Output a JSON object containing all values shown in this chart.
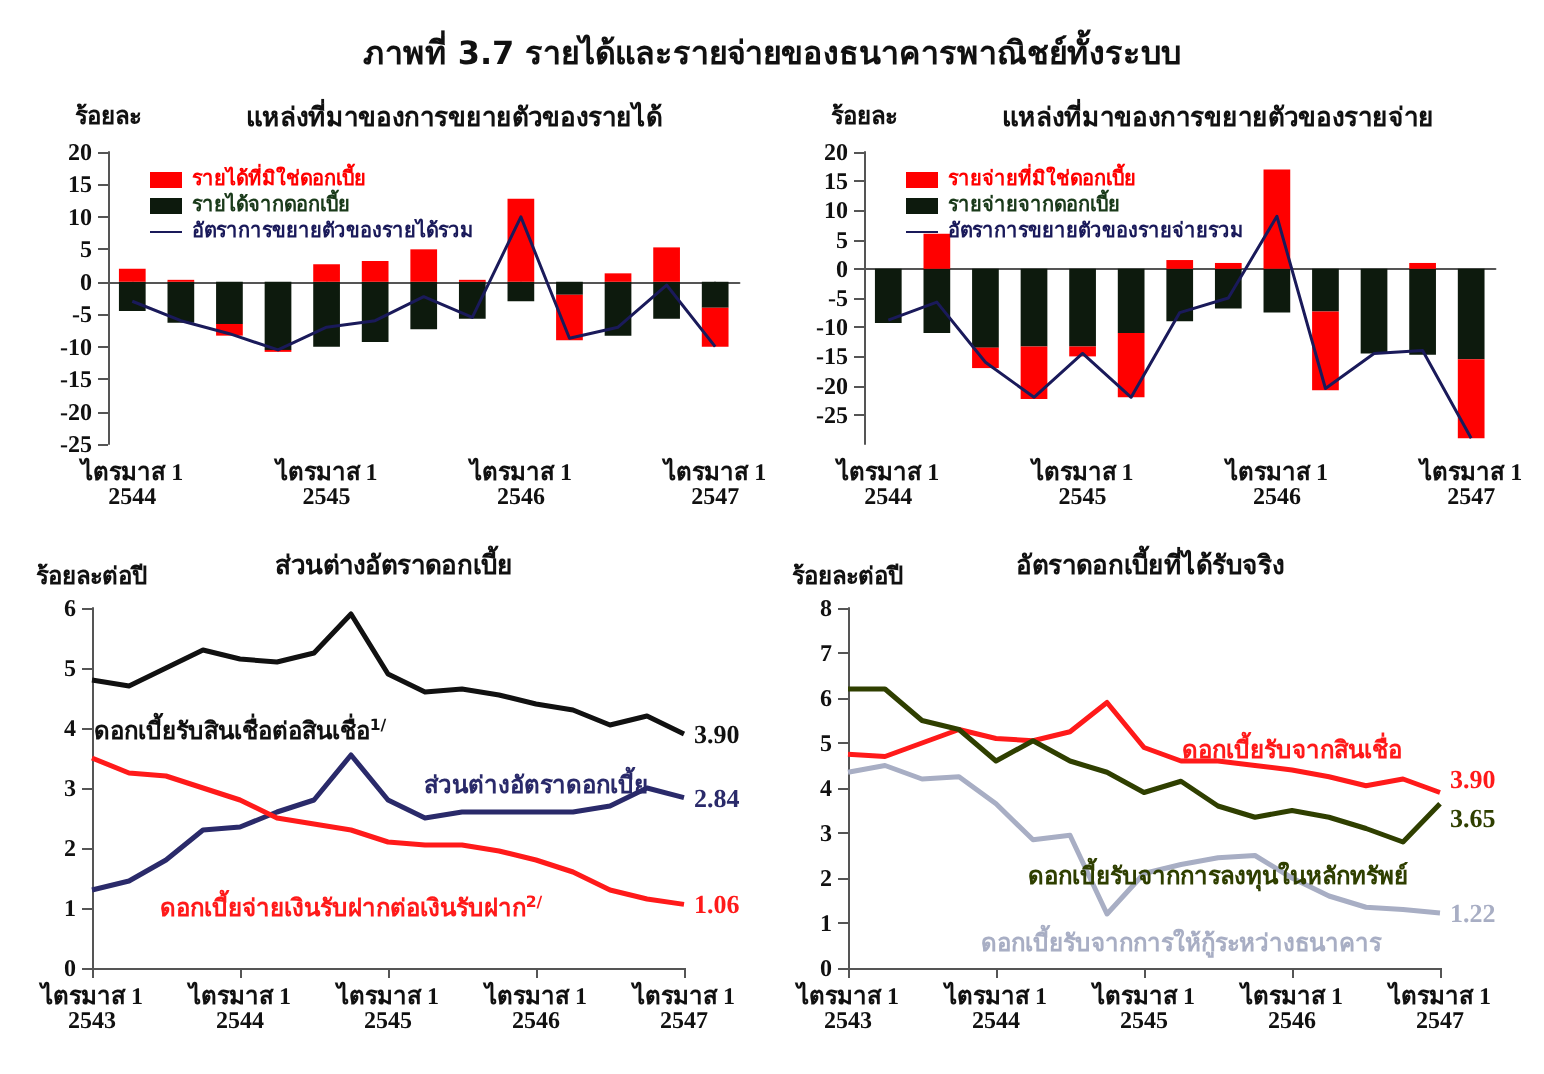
{
  "chart_data": [
    {
      "type": "bar",
      "title": "ภาพที่ 3.7 รายได้และรายจ่ายของธนาคารพาณิชย์ทั้งระบบ",
      "subtitle": "แหล่งที่มาของการขยายตัวของรายได้",
      "ylabel": "ร้อยละ",
      "marker": "none",
      "stacked": true,
      "legend": "top left",
      "ylim": [
        -25,
        20
      ],
      "yticks": [
        -25,
        -20,
        -15,
        -10,
        -5,
        0,
        5,
        10,
        15,
        20
      ],
      "categories": [
        "ไตรมาส 1\n2544",
        null,
        null,
        null,
        "ไตรมาส 1\n2545",
        null,
        null,
        null,
        "ไตรมาส 1\n2546",
        null,
        null,
        null,
        "ไตรมาส 1\n2547"
      ],
      "series": [
        {
          "name": "รายได้จากดอกเบี้ย",
          "color": "#0d1a0d",
          "values": [
            -4.5,
            -6.3,
            -6.5,
            -10.5,
            -10,
            -9.3,
            -7.3,
            -5.7,
            -3,
            -2,
            -8.3,
            -5.7,
            -4
          ]
        },
        {
          "name": "รายได้ที่มิใช่ดอกเบี้ย",
          "color": "#ff0000",
          "values": [
            2,
            0.3,
            -1.8,
            -0.3,
            2.7,
            3.2,
            5,
            0.3,
            12.8,
            -7,
            1.3,
            5.3,
            -6
          ]
        },
        {
          "name": "อัตราการขยายตัวของรายได้รวม",
          "type": "line",
          "color": "#1a1a5a",
          "values": [
            -3,
            -6,
            -8,
            -10.5,
            -7,
            -6,
            -2.3,
            -5.5,
            10,
            -8.7,
            -7,
            -0.5,
            -10
          ]
        }
      ]
    },
    {
      "type": "bar",
      "title": "แหล่งที่มาของการขยายตัวของรายจ่าย",
      "ylabel": "ร้อยละ",
      "marker": "none",
      "stacked": true,
      "legend": "top left",
      "ylim": [
        -30,
        20
      ],
      "yticks": [
        -25,
        -20,
        -15,
        -10,
        -5,
        0,
        5,
        10,
        15,
        20
      ],
      "categories": [
        "ไตรมาส 1\n2544",
        null,
        null,
        null,
        "ไตรมาส 1\n2545",
        null,
        null,
        null,
        "ไตรมาส 1\n2546",
        null,
        null,
        null,
        "ไตรมาส 1\n2547"
      ],
      "series": [
        {
          "name": "รายจ่ายจากดอกเบี้ย",
          "color": "#0d1a0d",
          "values": [
            -9.3,
            -11,
            -13.5,
            -13.3,
            -13.3,
            -11,
            -9,
            -6.8,
            -7.5,
            -7.3,
            -14.5,
            -14.7,
            -15.5
          ]
        },
        {
          "name": "รายจ่ายที่มิใช่ดอกเบี้ย",
          "color": "#ff0000",
          "values": [
            0,
            6,
            -3.5,
            -9,
            -1.7,
            -11,
            1.5,
            1,
            17,
            -13.5,
            0,
            1,
            -13.5
          ]
        },
        {
          "name": "อัตราการขยายตัวของรายจ่ายรวม",
          "type": "line",
          "color": "#1a1a5a",
          "values": [
            -8.8,
            -5.7,
            -16,
            -22,
            -14.5,
            -22,
            -7.5,
            -5,
            9,
            -20.5,
            -14.5,
            -14,
            -29
          ]
        }
      ]
    },
    {
      "type": "line",
      "title": "ส่วนต่างอัตราดอกเบี้ย",
      "ylabel": "ร้อยละต่อปี",
      "marker": "none",
      "ylim": [
        0,
        6
      ],
      "yticks": [
        0,
        1,
        2,
        3,
        4,
        5,
        6
      ],
      "categories": [
        "ไตรมาส 1\n2543",
        null,
        null,
        null,
        "ไตรมาส 1\n2544",
        null,
        null,
        null,
        "ไตรมาส 1\n2545",
        null,
        null,
        null,
        "ไตรมาส 1\n2546",
        null,
        null,
        null,
        "ไตรมาส 1\n2547"
      ],
      "series": [
        {
          "name": "ดอกเบี้ยรับสินเชื่อต่อสินเชื่อ$^{1/}$",
          "color": "#111111",
          "values": [
            4.8,
            4.7,
            5.0,
            5.3,
            5.15,
            5.1,
            5.25,
            5.9,
            4.9,
            4.6,
            4.65,
            4.55,
            4.4,
            4.3,
            4.05,
            4.2,
            3.9
          ],
          "value_labels": [
            null,
            null,
            null,
            null,
            null,
            null,
            null,
            null,
            null,
            null,
            null,
            null,
            null,
            null,
            null,
            null,
            "3.90"
          ]
        },
        {
          "name": "ส่วนต่างอัตราดอกเบี้ย",
          "color": "#2a2a6a",
          "values": [
            1.3,
            1.45,
            1.8,
            2.3,
            2.35,
            2.6,
            2.8,
            3.55,
            2.8,
            2.5,
            2.6,
            2.6,
            2.6,
            2.6,
            2.7,
            3.0,
            2.84
          ],
          "value_labels": [
            null,
            null,
            null,
            null,
            null,
            null,
            null,
            null,
            null,
            null,
            null,
            null,
            null,
            null,
            null,
            null,
            "2.84"
          ]
        },
        {
          "name": "ดอกเบี้ยจ่ายเงินรับฝากต่อเงินรับฝาก$^{2/}$",
          "color": "#ff1a1a",
          "values": [
            3.5,
            3.25,
            3.2,
            3.0,
            2.8,
            2.5,
            2.4,
            2.3,
            2.1,
            2.05,
            2.05,
            1.95,
            1.8,
            1.6,
            1.3,
            1.15,
            1.06
          ],
          "value_labels": [
            null,
            null,
            null,
            null,
            null,
            null,
            null,
            null,
            null,
            null,
            null,
            null,
            null,
            null,
            null,
            null,
            "1.06"
          ]
        }
      ]
    },
    {
      "type": "line",
      "title": "อัตราดอกเบี้ยที่ได้รับจริง",
      "ylabel": "ร้อยละต่อปี",
      "marker": "none",
      "ylim": [
        0,
        8
      ],
      "yticks": [
        0,
        1,
        2,
        3,
        4,
        5,
        6,
        7,
        8
      ],
      "categories": [
        "ไตรมาส 1\n2543",
        null,
        null,
        null,
        "ไตรมาส 1\n2544",
        null,
        null,
        null,
        "ไตรมาส 1\n2545",
        null,
        null,
        null,
        "ไตรมาส 1\n2546",
        null,
        null,
        null,
        "ไตรมาส 1\n2547"
      ],
      "series": [
        {
          "name": "ดอกเบี้ยรับจากสินเชื่อ",
          "color": "#ff1a1a",
          "values": [
            4.75,
            4.7,
            5.0,
            5.3,
            5.1,
            5.05,
            5.25,
            5.9,
            4.9,
            4.6,
            4.6,
            4.5,
            4.4,
            4.25,
            4.05,
            4.2,
            3.9
          ],
          "value_labels": [
            null,
            null,
            null,
            null,
            null,
            null,
            null,
            null,
            null,
            null,
            null,
            null,
            null,
            null,
            null,
            null,
            "3.90"
          ]
        },
        {
          "name": "ดอกเบี้ยรับจากการลงทุนในหลักทรัพย์",
          "color": "#2f3f00",
          "values": [
            6.2,
            6.2,
            5.5,
            5.3,
            4.6,
            5.05,
            4.6,
            4.35,
            3.9,
            4.15,
            3.6,
            3.35,
            3.5,
            3.35,
            3.1,
            2.8,
            3.65
          ],
          "value_labels": [
            null,
            null,
            null,
            null,
            null,
            null,
            null,
            null,
            null,
            null,
            null,
            null,
            null,
            null,
            null,
            null,
            "3.65"
          ]
        },
        {
          "name": "ดอกเบี้ยรับจากการให้กู้ระหว่างธนาคาร",
          "color": "#a8aec4",
          "values": [
            4.35,
            4.5,
            4.2,
            4.25,
            3.65,
            2.85,
            2.95,
            1.2,
            2.1,
            2.3,
            2.45,
            2.5,
            2.0,
            1.6,
            1.35,
            1.3,
            1.22
          ],
          "value_labels": [
            null,
            null,
            null,
            null,
            null,
            null,
            null,
            null,
            null,
            null,
            null,
            null,
            null,
            null,
            null,
            null,
            "1.22"
          ]
        }
      ]
    }
  ]
}
